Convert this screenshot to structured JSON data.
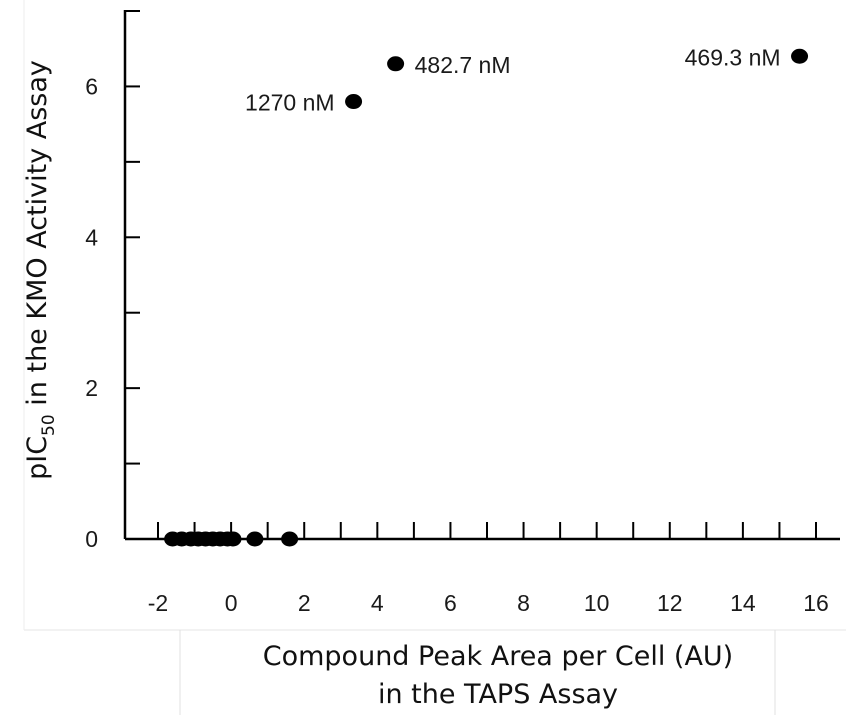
{
  "chart_data": {
    "type": "scatter",
    "xlabel_lines": [
      "Compound Peak Area per Cell (AU)",
      "in the TAPS Assay"
    ],
    "ylabel": {
      "prefix": "pIC",
      "subscript": "50",
      "suffix": " in the KMO Activity Assay"
    },
    "xlim": [
      -2,
      16
    ],
    "ylim": [
      0,
      7
    ],
    "xticks": [
      -2,
      0,
      2,
      4,
      6,
      8,
      10,
      12,
      14,
      16
    ],
    "xtick_labels": [
      "-2",
      "0",
      "2",
      "4",
      "6",
      "8",
      "10",
      "12",
      "14",
      "16"
    ],
    "yticks": [
      0,
      2,
      4,
      6
    ],
    "ytick_labels": [
      "0",
      "2",
      "4",
      "6"
    ],
    "grid": false,
    "legend": false,
    "points": [
      {
        "x": -1.6,
        "y": 0
      },
      {
        "x": -1.35,
        "y": 0
      },
      {
        "x": -1.1,
        "y": 0
      },
      {
        "x": -0.9,
        "y": 0
      },
      {
        "x": -0.7,
        "y": 0
      },
      {
        "x": -0.5,
        "y": 0
      },
      {
        "x": -0.3,
        "y": 0
      },
      {
        "x": -0.1,
        "y": 0
      },
      {
        "x": 0.05,
        "y": 0
      },
      {
        "x": 0.65,
        "y": 0
      },
      {
        "x": 1.6,
        "y": 0
      },
      {
        "x": 3.35,
        "y": 5.8,
        "label": "1270 nM",
        "label_side": "left"
      },
      {
        "x": 4.5,
        "y": 6.3,
        "label": "482.7 nM",
        "label_side": "right"
      },
      {
        "x": 15.55,
        "y": 6.4,
        "label": "469.3 nM",
        "label_side": "left"
      }
    ],
    "colors": {
      "marker": "#000000",
      "axis": "#000000",
      "text": "#1a1a1a"
    }
  }
}
